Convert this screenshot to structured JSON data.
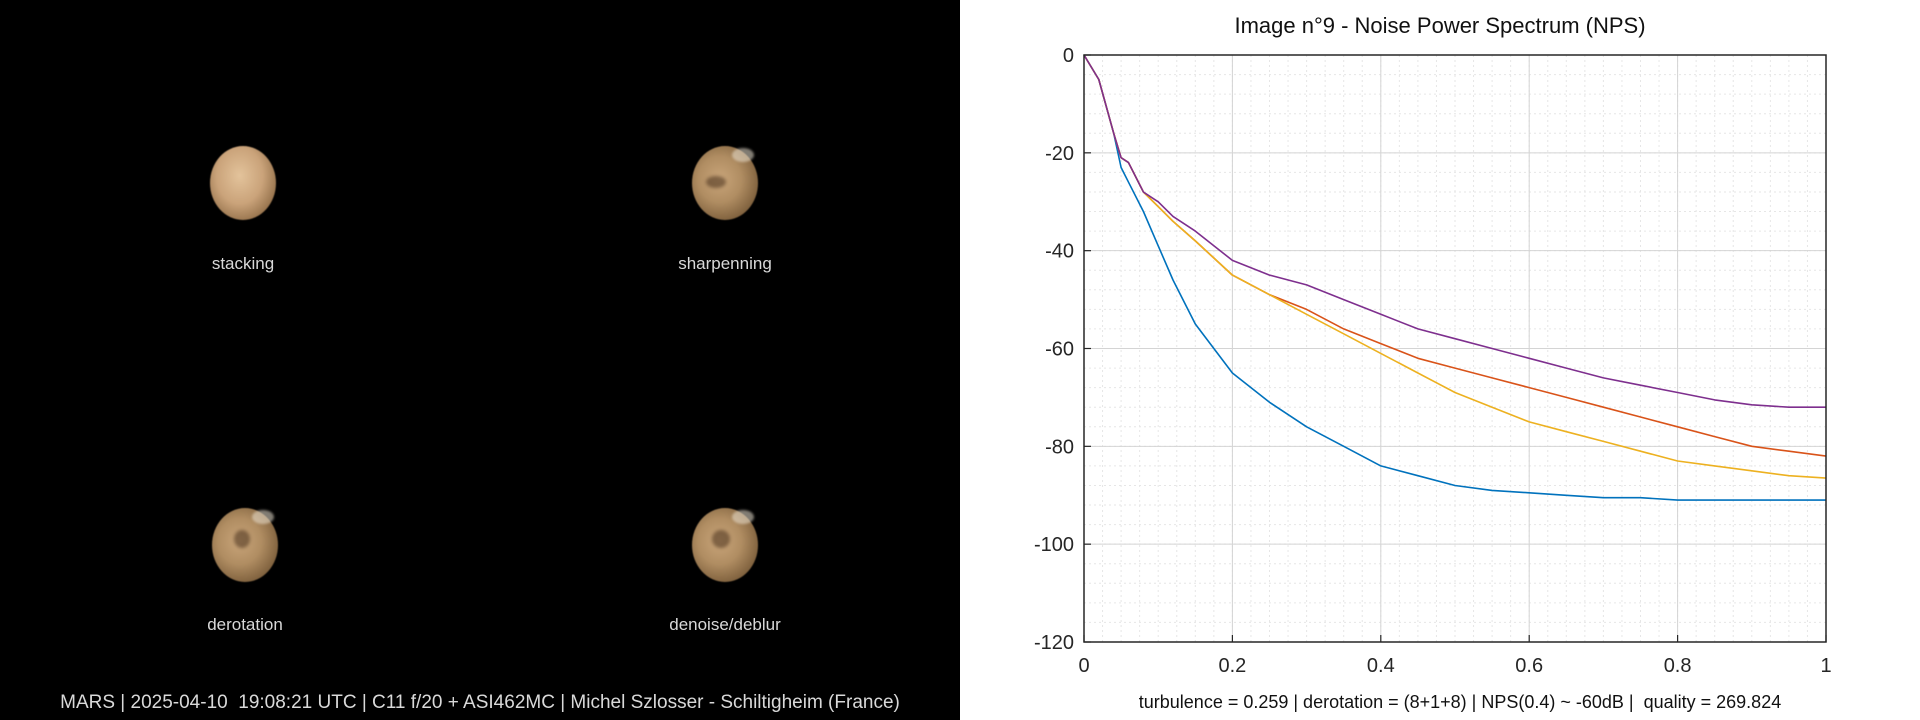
{
  "panels": [
    {
      "label": "stacking"
    },
    {
      "label": "sharpenning"
    },
    {
      "label": "derotation"
    },
    {
      "label": "denoise/deblur"
    }
  ],
  "footer_left": "MARS | 2025-04-10  19:08:21 UTC | C11 f/20 + ASI462MC | Michel Szlosser - Schiltigheim (France)",
  "chart_footer": "turbulence = 0.259 | derotation = (8+1+8) | NPS(0.4) ~ -60dB |  quality = 269.824",
  "colors": {
    "background_left": "#000000",
    "grid": "#d4d4d4",
    "axis": "#262626"
  },
  "chart_data": {
    "type": "line",
    "title": "Image n°9 - Noise Power Spectrum (NPS)",
    "xlabel": "",
    "ylabel": "",
    "xlim": [
      0,
      1
    ],
    "ylim": [
      -120,
      0
    ],
    "xticks": [
      0,
      0.2,
      0.4,
      0.6,
      0.8,
      1
    ],
    "xtick_labels": [
      "0",
      "0.2",
      "0.4",
      "0.6",
      "0.8",
      "1"
    ],
    "yticks": [
      0,
      -20,
      -40,
      -60,
      -80,
      -100,
      -120
    ],
    "ytick_labels": [
      "0",
      "-20",
      "-40",
      "-60",
      "-80",
      "-100",
      "-120"
    ],
    "grid": true,
    "x": [
      0,
      0.02,
      0.04,
      0.05,
      0.06,
      0.08,
      0.1,
      0.12,
      0.15,
      0.2,
      0.25,
      0.3,
      0.35,
      0.4,
      0.45,
      0.5,
      0.55,
      0.6,
      0.65,
      0.7,
      0.75,
      0.8,
      0.85,
      0.9,
      0.95,
      1.0
    ],
    "series": [
      {
        "color": "#0072BD",
        "values": [
          0,
          -5,
          -16,
          -23,
          -26,
          -32,
          -39,
          -46,
          -55,
          -65,
          -71,
          -76,
          -80,
          -84,
          -86,
          -88,
          -89,
          -89.5,
          -90,
          -90.5,
          -90.5,
          -91,
          -91,
          -91,
          -91,
          -91
        ]
      },
      {
        "color": "#D95319",
        "values": [
          0,
          -5,
          -16,
          -21,
          -22,
          -28,
          -31,
          -34,
          -38,
          -45,
          -49,
          -52,
          -56,
          -59,
          -62,
          -64,
          -66,
          -68,
          -70,
          -72,
          -74,
          -76,
          -78,
          -80,
          -81,
          -82
        ]
      },
      {
        "color": "#EDB120",
        "values": [
          0,
          -5,
          -16,
          -21,
          -22,
          -28,
          -31,
          -34,
          -38,
          -45,
          -49,
          -53,
          -57,
          -61,
          -65,
          -69,
          -72,
          -75,
          -77,
          -79,
          -81,
          -83,
          -84,
          -85,
          -86,
          -86.5
        ]
      },
      {
        "color": "#7E2F8E",
        "values": [
          0,
          -5,
          -16,
          -21,
          -22,
          -28,
          -30,
          -33,
          -36,
          -42,
          -45,
          -47,
          -50,
          -53,
          -56,
          -58,
          -60,
          -62,
          -64,
          -66,
          -67.5,
          -69,
          -70.5,
          -71.5,
          -72,
          -72
        ]
      }
    ]
  }
}
